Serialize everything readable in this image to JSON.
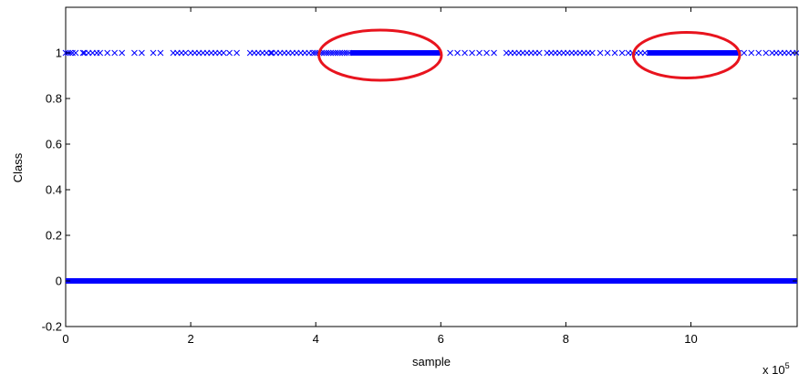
{
  "chart_data": {
    "type": "scatter",
    "title": "",
    "xlabel": "sample",
    "ylabel": "Class",
    "x_multiplier_label": "x 10",
    "x_multiplier_exponent": "5",
    "xlim": [
      0,
      11.7
    ],
    "ylim": [
      -0.2,
      1.2
    ],
    "x_ticks": [
      0,
      2,
      4,
      6,
      8,
      10
    ],
    "y_ticks": [
      -0.2,
      0,
      0.2,
      0.4,
      0.6,
      0.8,
      1
    ],
    "x_tick_labels": [
      "0",
      "2",
      "4",
      "6",
      "8",
      "10"
    ],
    "y_tick_labels": [
      "-0.2",
      "0",
      "0.2",
      "0.4",
      "0.6",
      "0.8",
      "1"
    ],
    "grid": false,
    "marker": "x",
    "marker_color": "#0000ff",
    "series": [
      {
        "class_value": 0,
        "x_range": [
          0,
          11.7
        ],
        "density": "continuous"
      },
      {
        "class_value": 1,
        "segments": [
          [
            0.0,
            0.12,
            "dense"
          ],
          [
            0.16,
            0.3,
            "sparse"
          ],
          [
            0.3,
            0.55,
            "medium"
          ],
          [
            0.55,
            0.95,
            "sparse"
          ],
          [
            1.1,
            1.25,
            "sparse"
          ],
          [
            1.4,
            1.6,
            "sparse"
          ],
          [
            1.72,
            1.98,
            "medium"
          ],
          [
            2.0,
            2.55,
            "medium"
          ],
          [
            2.62,
            2.82,
            "sparse"
          ],
          [
            2.95,
            3.3,
            "medium"
          ],
          [
            3.3,
            3.95,
            "medium"
          ],
          [
            3.95,
            4.55,
            "dense"
          ],
          [
            4.55,
            6.0,
            "continuous"
          ],
          [
            6.15,
            6.95,
            "sparse"
          ],
          [
            7.05,
            7.6,
            "medium"
          ],
          [
            7.7,
            8.45,
            "medium"
          ],
          [
            8.55,
            9.0,
            "sparse"
          ],
          [
            9.0,
            9.3,
            "medium"
          ],
          [
            9.3,
            10.8,
            "continuous"
          ],
          [
            10.85,
            11.3,
            "sparse"
          ],
          [
            11.3,
            11.7,
            "medium"
          ]
        ]
      }
    ],
    "annotations": [
      {
        "shape": "ellipse",
        "color": "#e8141e",
        "cx": 5.03,
        "cy": 0.99,
        "rx": 0.98,
        "ry": 0.11
      },
      {
        "shape": "ellipse",
        "color": "#e8141e",
        "cx": 9.93,
        "cy": 0.99,
        "rx": 0.85,
        "ry": 0.1
      }
    ]
  }
}
